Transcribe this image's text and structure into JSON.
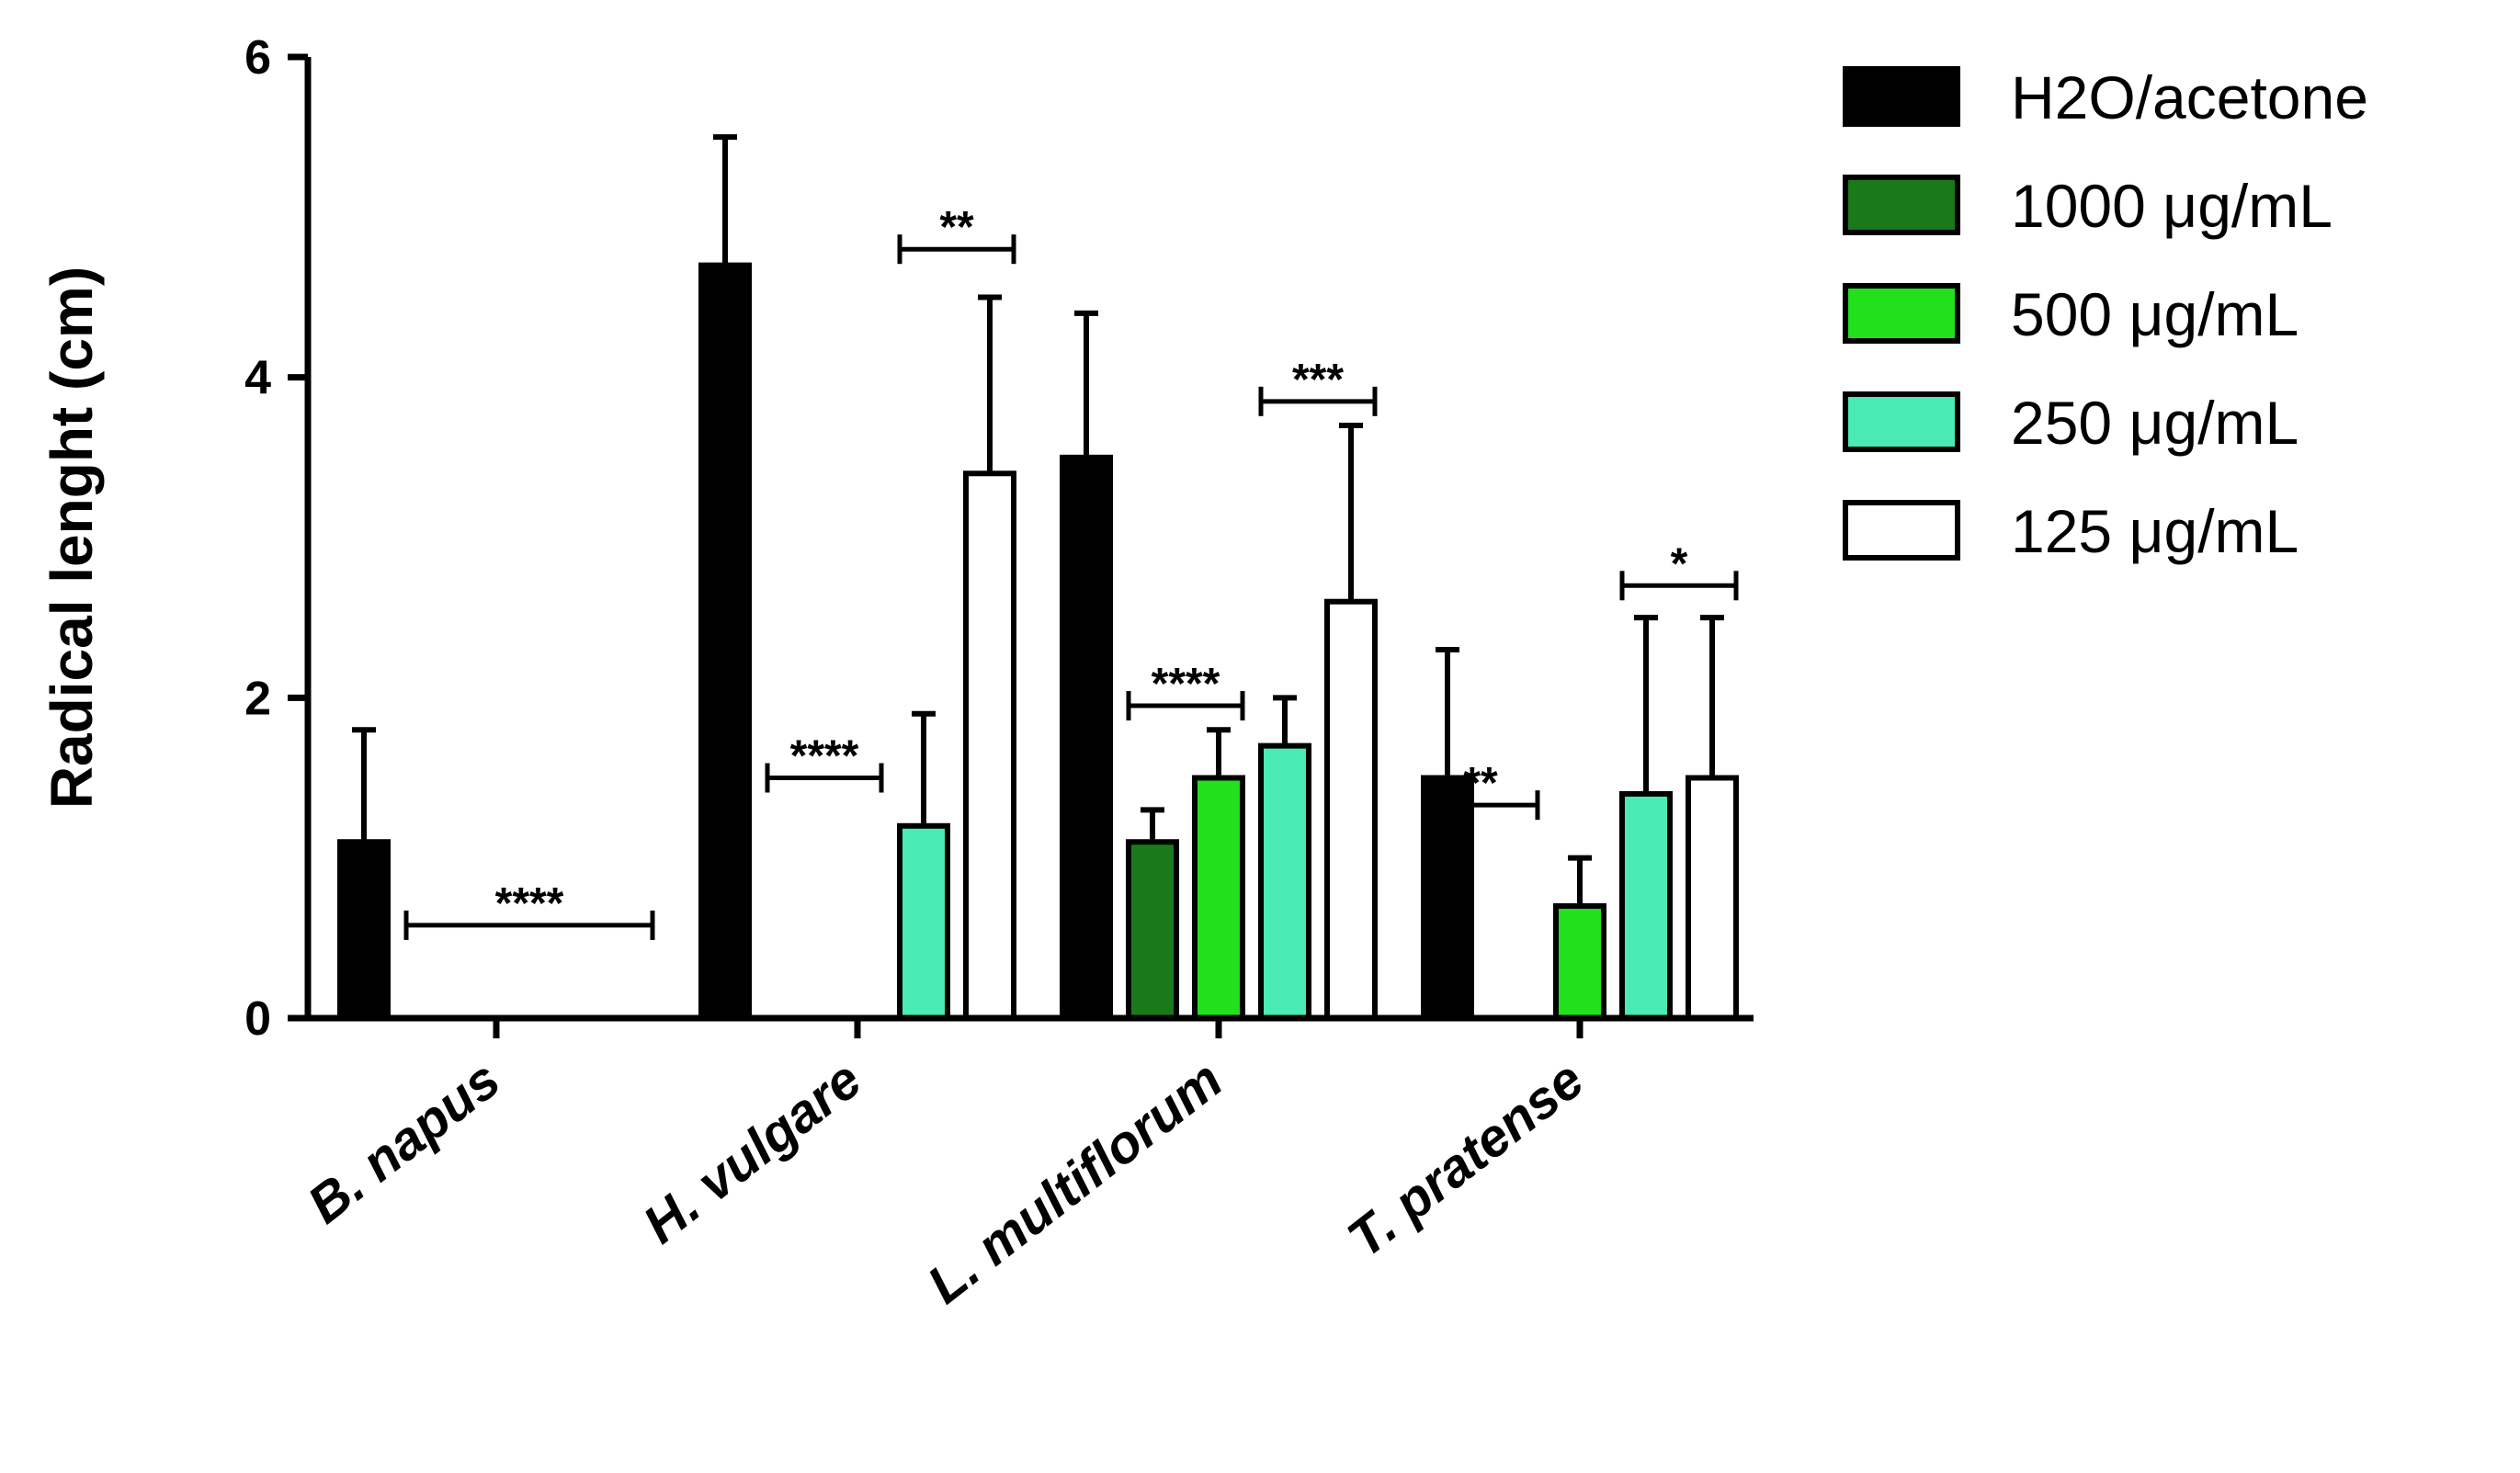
{
  "chart_data": {
    "type": "bar",
    "ylabel": "Radical lenght (cm)",
    "xlabel": "",
    "ylim": [
      0,
      6
    ],
    "yticks": [
      0,
      2,
      4,
      6
    ],
    "categories": [
      "B. napus",
      "H. vulgare",
      "L. multiflorum",
      "T. pratense"
    ],
    "series": [
      {
        "name": "H2O/acetone",
        "color": "#000000",
        "values": [
          1.1,
          4.7,
          3.5,
          1.5
        ],
        "errors": [
          0.7,
          0.8,
          0.9,
          0.8
        ]
      },
      {
        "name": "1000 μg/mL",
        "color": "#1a7a1a",
        "values": [
          0,
          0,
          1.1,
          0
        ],
        "errors": [
          0,
          0,
          0.2,
          0
        ]
      },
      {
        "name": "500 μg/mL",
        "color": "#22e01c",
        "values": [
          0,
          0,
          1.5,
          0.7
        ],
        "errors": [
          0,
          0,
          0.3,
          0.3
        ]
      },
      {
        "name": "250 μg/mL",
        "color": "#49eab3",
        "values": [
          0,
          1.2,
          1.7,
          1.4
        ],
        "errors": [
          0,
          0.7,
          0.3,
          1.1
        ]
      },
      {
        "name": "125 μg/mL",
        "color": "#ffffff",
        "values": [
          0,
          3.4,
          2.6,
          1.5
        ],
        "errors": [
          0,
          1.1,
          1.1,
          1.0
        ]
      }
    ],
    "significance": [
      {
        "category": 0,
        "from_series": 1,
        "to_series": 4,
        "y": 0.58,
        "label": "****"
      },
      {
        "category": 1,
        "from_series": 1,
        "to_series": 2,
        "y": 1.5,
        "label": "****"
      },
      {
        "category": 1,
        "from_series": 3,
        "to_series": 4,
        "y": 4.8,
        "label": "**"
      },
      {
        "category": 2,
        "from_series": 1,
        "to_series": 2,
        "y": 1.95,
        "label": "****"
      },
      {
        "category": 2,
        "from_series": 3,
        "to_series": 4,
        "y": 3.85,
        "label": "***"
      },
      {
        "category": 3,
        "from_series": 0,
        "to_series": 1,
        "y": 1.33,
        "label": "**"
      },
      {
        "category": 3,
        "from_series": 3,
        "to_series": 4,
        "y": 2.7,
        "label": "*"
      }
    ],
    "legend_position": "top-right",
    "grid": false
  }
}
